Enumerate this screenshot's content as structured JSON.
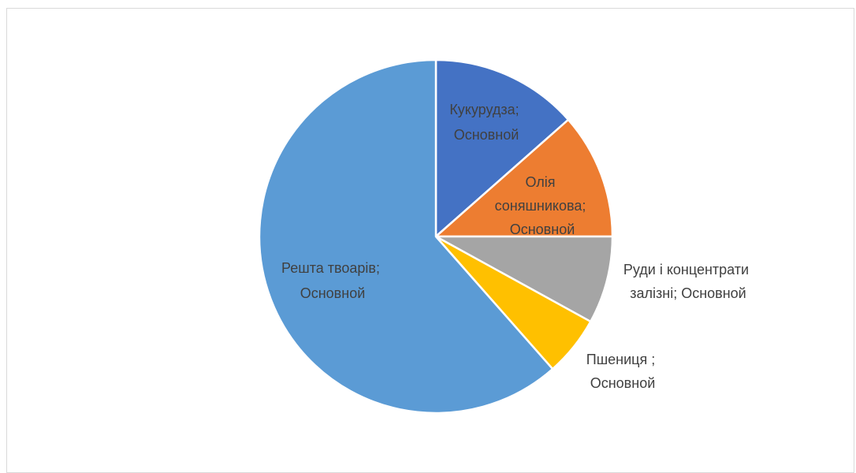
{
  "chart_data": {
    "type": "pie",
    "title": "",
    "legend": "none",
    "slices": [
      {
        "label": "Кукурудза;",
        "label_line2": "Основной",
        "value": 13.5,
        "color": "#4472c4",
        "text_color": "#404040"
      },
      {
        "label": "Олія соняшникова;",
        "label_line2": "Основной",
        "value": 11.5,
        "color": "#ed7d31",
        "text_color": "#404040"
      },
      {
        "label": "Руди і концентрати залізні;",
        "label_line2": "Основной",
        "value": 8,
        "color": "#a5a5a5",
        "text_color": "#404040"
      },
      {
        "label": "Пшениця ;",
        "label_line2": "Основной",
        "value": 5.5,
        "color": "#ffc000",
        "text_color": "#404040"
      },
      {
        "label": "Решта твоарів;",
        "label_line2": "Основной",
        "value": 61.5,
        "color": "#5b9bd5",
        "text_color": "#404040"
      }
    ]
  }
}
